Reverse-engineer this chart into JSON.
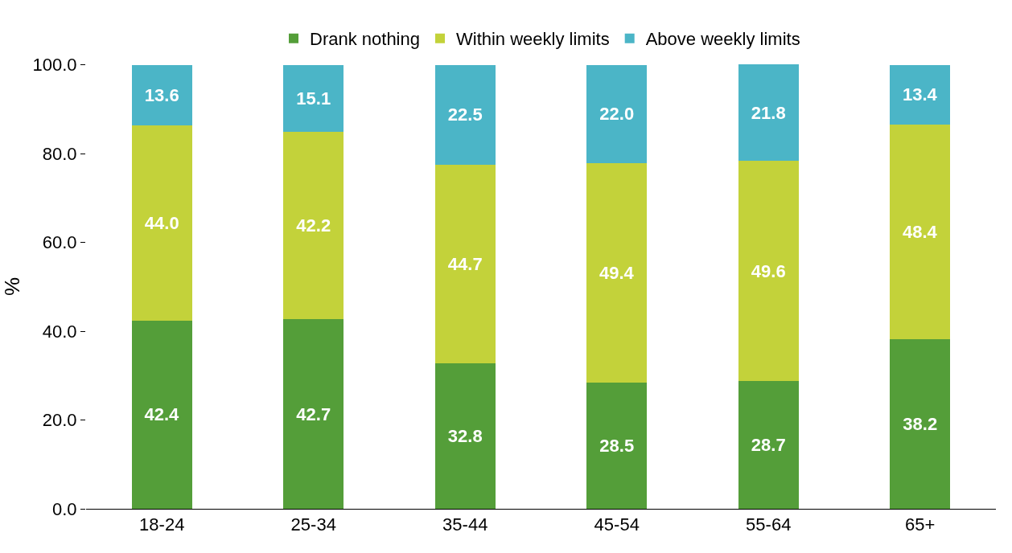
{
  "chart_data": {
    "type": "bar",
    "stacked": true,
    "ylabel": "%",
    "categories": [
      "18-24",
      "25-34",
      "35-44",
      "45-54",
      "55-64",
      "65+"
    ],
    "series": [
      {
        "name": "Drank nothing",
        "color": "#549e39",
        "values": [
          42.4,
          42.7,
          32.8,
          28.5,
          28.7,
          38.2
        ],
        "value_labels": [
          "42.4",
          "42.7",
          "32.8",
          "28.5",
          "28.7",
          "38.2"
        ]
      },
      {
        "name": "Within weekly limits",
        "color": "#c3d23a",
        "values": [
          44.0,
          42.2,
          44.7,
          49.4,
          49.6,
          48.4
        ],
        "value_labels": [
          "44.0",
          "42.2",
          "44.7",
          "49.4",
          "49.6",
          "48.4"
        ]
      },
      {
        "name": "Above weekly limits",
        "color": "#4bb5c7",
        "values": [
          13.6,
          15.1,
          22.5,
          22.0,
          21.8,
          13.4
        ],
        "value_labels": [
          "13.6",
          "15.1",
          "22.5",
          "22.0",
          "21.8",
          "13.4"
        ]
      }
    ],
    "ylim": [
      0,
      100.1
    ],
    "yticks": [
      {
        "value": 0,
        "label": "0.0"
      },
      {
        "value": 20,
        "label": "20.0"
      },
      {
        "value": 40,
        "label": "40.0"
      },
      {
        "value": 60,
        "label": "60.0"
      },
      {
        "value": 80,
        "label": "80.0"
      },
      {
        "value": 100,
        "label": "100.0"
      }
    ],
    "data_labels": true,
    "legend": "top"
  }
}
